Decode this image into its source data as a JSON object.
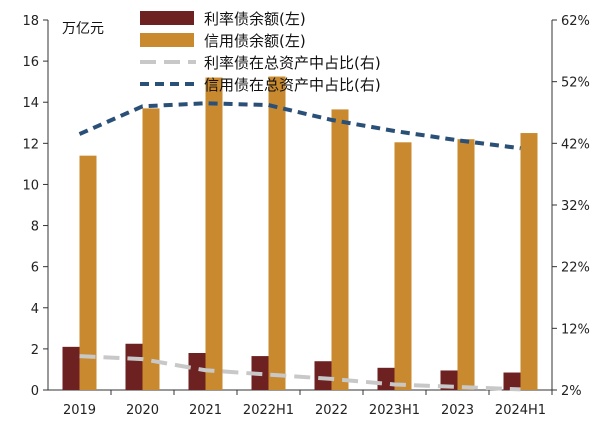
{
  "chart_data": {
    "type": "bar",
    "unit_label": "万亿元",
    "categories": [
      "2019",
      "2020",
      "2021",
      "2022H1",
      "2022",
      "2023H1",
      "2023",
      "2024H1"
    ],
    "left_axis": {
      "ticks": [
        0,
        2,
        4,
        6,
        8,
        10,
        12,
        14,
        16,
        18
      ],
      "ylim": [
        0,
        18
      ]
    },
    "right_axis": {
      "ticks": [
        "2%",
        "12%",
        "22%",
        "32%",
        "42%",
        "52%",
        "62%"
      ],
      "ylim": [
        2,
        62
      ],
      "tick_values": [
        2,
        12,
        22,
        32,
        42,
        52,
        62
      ]
    },
    "series": [
      {
        "name": "利率债余额(左)",
        "type": "bar",
        "axis": "left",
        "color": "#6e2121",
        "values": [
          2.1,
          2.25,
          1.8,
          1.65,
          1.4,
          1.08,
          0.95,
          0.85
        ]
      },
      {
        "name": "信用债余额(左)",
        "type": "bar",
        "axis": "left",
        "color": "#c8892f",
        "values": [
          11.4,
          13.7,
          15.2,
          15.25,
          13.65,
          12.05,
          12.2,
          12.5
        ]
      },
      {
        "name": "利率债在总资产中占比(右)",
        "type": "line",
        "axis": "right",
        "color": "#c8c8c8",
        "dash": "long",
        "values": [
          7.5,
          7.0,
          5.2,
          4.5,
          3.8,
          2.9,
          2.5,
          2.1
        ]
      },
      {
        "name": "信用债在总资产中占比(右)",
        "type": "line",
        "axis": "right",
        "color": "#2a5078",
        "dash": "short",
        "values": [
          43.5,
          48.0,
          48.5,
          48.2,
          45.8,
          44.0,
          42.5,
          41.2
        ]
      }
    ]
  }
}
